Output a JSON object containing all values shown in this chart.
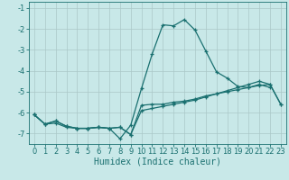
{
  "xlabel": "Humidex (Indice chaleur)",
  "x": [
    0,
    1,
    2,
    3,
    4,
    5,
    6,
    7,
    8,
    9,
    10,
    11,
    12,
    13,
    14,
    15,
    16,
    17,
    18,
    19,
    20,
    21,
    22,
    23
  ],
  "line1": [
    -6.1,
    -6.55,
    -6.5,
    -6.7,
    -6.75,
    -6.75,
    -6.7,
    -6.75,
    -7.25,
    -6.6,
    -4.85,
    -3.2,
    -1.8,
    -1.85,
    -1.55,
    -2.05,
    -3.05,
    -4.05,
    -4.35,
    -4.75,
    -4.8,
    -4.65,
    -4.8,
    null
  ],
  "line2": [
    -6.1,
    -6.55,
    -6.4,
    -6.65,
    -6.75,
    -6.75,
    -6.7,
    -6.75,
    -6.7,
    -7.05,
    -5.65,
    -5.6,
    -5.6,
    -5.5,
    -5.45,
    -5.35,
    -5.2,
    -5.1,
    -5.0,
    -4.9,
    -4.8,
    -4.7,
    -4.65,
    -5.6
  ],
  "line3": [
    -6.1,
    -6.55,
    -6.4,
    -6.65,
    -6.75,
    -6.75,
    -6.7,
    -6.75,
    -6.7,
    -7.05,
    -5.9,
    -5.8,
    -5.7,
    -5.6,
    -5.5,
    -5.4,
    -5.25,
    -5.1,
    -4.95,
    -4.8,
    -4.65,
    -4.5,
    -4.65,
    -5.6
  ],
  "bg_color": "#c8e8e8",
  "line_color": "#1a7070",
  "grid_color": "#aac8c8",
  "xlim": [
    -0.5,
    23.5
  ],
  "ylim": [
    -7.5,
    -0.7
  ],
  "yticks": [
    -7,
    -6,
    -5,
    -4,
    -3,
    -2,
    -1
  ],
  "xticks": [
    0,
    1,
    2,
    3,
    4,
    5,
    6,
    7,
    8,
    9,
    10,
    11,
    12,
    13,
    14,
    15,
    16,
    17,
    18,
    19,
    20,
    21,
    22,
    23
  ],
  "xlabel_fontsize": 7,
  "tick_fontsize": 6,
  "marker_size": 3,
  "line_width": 0.9
}
